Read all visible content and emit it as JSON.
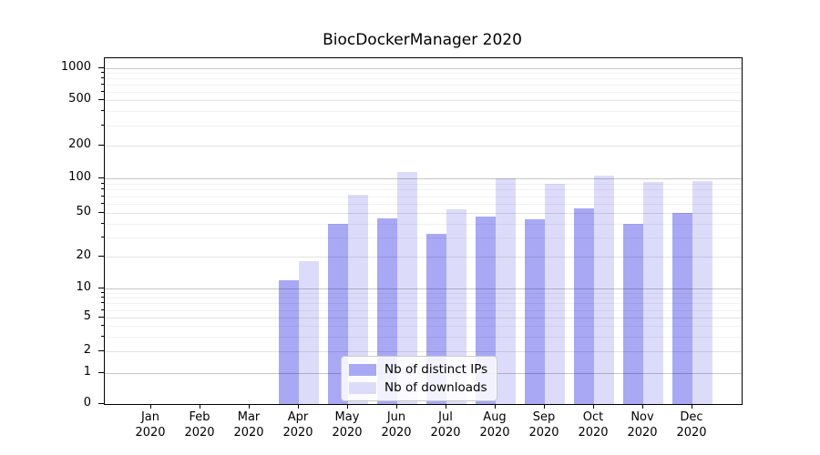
{
  "title": "BiocDockerManager 2020",
  "chart_data": {
    "type": "bar",
    "title": "BiocDockerManager 2020",
    "x_categories": [
      {
        "month": "Jan",
        "year": "2020"
      },
      {
        "month": "Feb",
        "year": "2020"
      },
      {
        "month": "Mar",
        "year": "2020"
      },
      {
        "month": "Apr",
        "year": "2020"
      },
      {
        "month": "May",
        "year": "2020"
      },
      {
        "month": "Jun",
        "year": "2020"
      },
      {
        "month": "Jul",
        "year": "2020"
      },
      {
        "month": "Aug",
        "year": "2020"
      },
      {
        "month": "Sep",
        "year": "2020"
      },
      {
        "month": "Oct",
        "year": "2020"
      },
      {
        "month": "Nov",
        "year": "2020"
      },
      {
        "month": "Dec",
        "year": "2020"
      }
    ],
    "series": [
      {
        "name": "Nb of distinct IPs",
        "color": "#a8a8f5",
        "values": [
          0,
          0,
          0,
          12,
          40,
          45,
          32,
          46,
          44,
          55,
          40,
          50
        ]
      },
      {
        "name": "Nb of downloads",
        "color": "#dcdcfa",
        "values": [
          0,
          0,
          0,
          18,
          72,
          115,
          54,
          100,
          90,
          105,
          93,
          95
        ]
      }
    ],
    "y_axis": {
      "scale": "log-like (symlog with 0 baseline)",
      "ticks": [
        0,
        1,
        2,
        5,
        10,
        20,
        50,
        100,
        200,
        500,
        1000
      ],
      "decade_ticks": [
        1,
        10,
        100,
        1000
      ],
      "minor_ticks": [
        3,
        4,
        6,
        7,
        8,
        9,
        30,
        40,
        60,
        70,
        80,
        90,
        300,
        400,
        600,
        700,
        800,
        900
      ],
      "ylim": [
        0,
        1200
      ]
    },
    "legend_position": "lower center",
    "grid": true
  }
}
